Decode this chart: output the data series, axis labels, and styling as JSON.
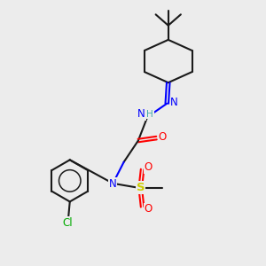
{
  "bg_color": "#ececec",
  "bond_color": "#1a1a1a",
  "N_color": "#0000ff",
  "O_color": "#ff0000",
  "S_color": "#cccc00",
  "Cl_color": "#00aa00",
  "H_color": "#44aaaa",
  "figsize": [
    3.0,
    3.0
  ],
  "dpi": 100,
  "xlim": [
    0,
    10
  ],
  "ylim": [
    0,
    10
  ]
}
